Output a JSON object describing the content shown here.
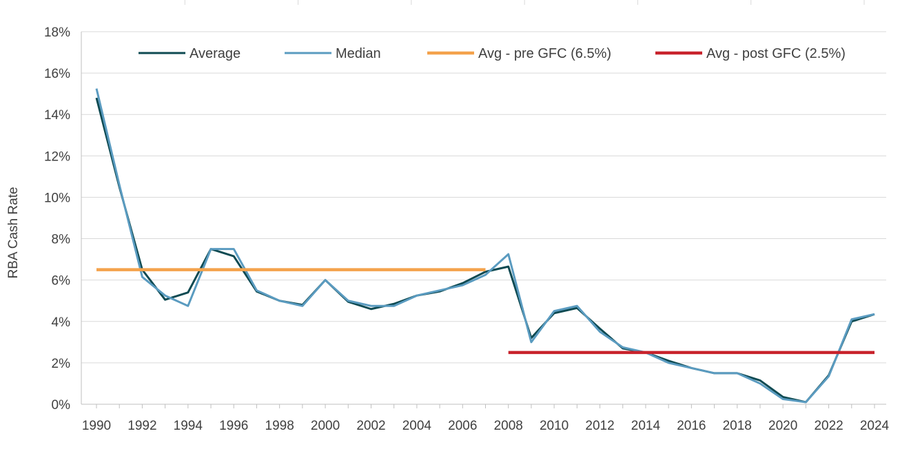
{
  "chart_data": {
    "type": "line",
    "title": "",
    "xlabel": "",
    "ylabel": "RBA Cash Rate",
    "xlim": [
      1990,
      2024
    ],
    "ylim": [
      0,
      18
    ],
    "x_ticks": [
      "1990",
      "1992",
      "1994",
      "1996",
      "1998",
      "2000",
      "2002",
      "2004",
      "2006",
      "2008",
      "2010",
      "2012",
      "2014",
      "2016",
      "2018",
      "2020",
      "2022",
      "2024"
    ],
    "y_ticks": [
      "0%",
      "2%",
      "4%",
      "6%",
      "8%",
      "10%",
      "12%",
      "14%",
      "16%",
      "18%"
    ],
    "grid": true,
    "legend": "top",
    "x": [
      1990,
      1991,
      1992,
      1993,
      1994,
      1995,
      1996,
      1997,
      1998,
      1999,
      2000,
      2001,
      2002,
      2003,
      2004,
      2005,
      2006,
      2007,
      2008,
      2009,
      2010,
      2011,
      2012,
      2013,
      2014,
      2015,
      2016,
      2017,
      2018,
      2019,
      2020,
      2021,
      2022,
      2023,
      2024
    ],
    "series": [
      {
        "name": "Average",
        "color": "#0e4a52",
        "values": [
          14.8,
          10.5,
          6.5,
          5.05,
          5.4,
          7.5,
          7.15,
          5.45,
          5.0,
          4.8,
          6.0,
          4.95,
          4.6,
          4.85,
          5.25,
          5.45,
          5.85,
          6.4,
          6.65,
          3.2,
          4.4,
          4.65,
          3.65,
          2.7,
          2.5,
          2.1,
          1.75,
          1.5,
          1.5,
          1.15,
          0.35,
          0.1,
          1.4,
          4.0,
          4.35
        ]
      },
      {
        "name": "Median",
        "color": "#5a9bc0",
        "values": [
          15.25,
          10.6,
          6.15,
          5.25,
          4.75,
          7.5,
          7.5,
          5.5,
          5.0,
          4.75,
          6.0,
          5.0,
          4.75,
          4.75,
          5.25,
          5.5,
          5.75,
          6.25,
          7.25,
          3.0,
          4.5,
          4.75,
          3.5,
          2.75,
          2.5,
          2.0,
          1.75,
          1.5,
          1.5,
          1.0,
          0.25,
          0.1,
          1.35,
          4.1,
          4.35
        ]
      },
      {
        "name": "Avg - pre GFC (6.5%)",
        "color": "#f4a24b",
        "x_range": [
          1990,
          2007
        ],
        "value": 6.5
      },
      {
        "name": "Avg - post GFC (2.5%)",
        "color": "#c8232c",
        "x_range": [
          2008,
          2024
        ],
        "value": 2.5
      }
    ]
  }
}
